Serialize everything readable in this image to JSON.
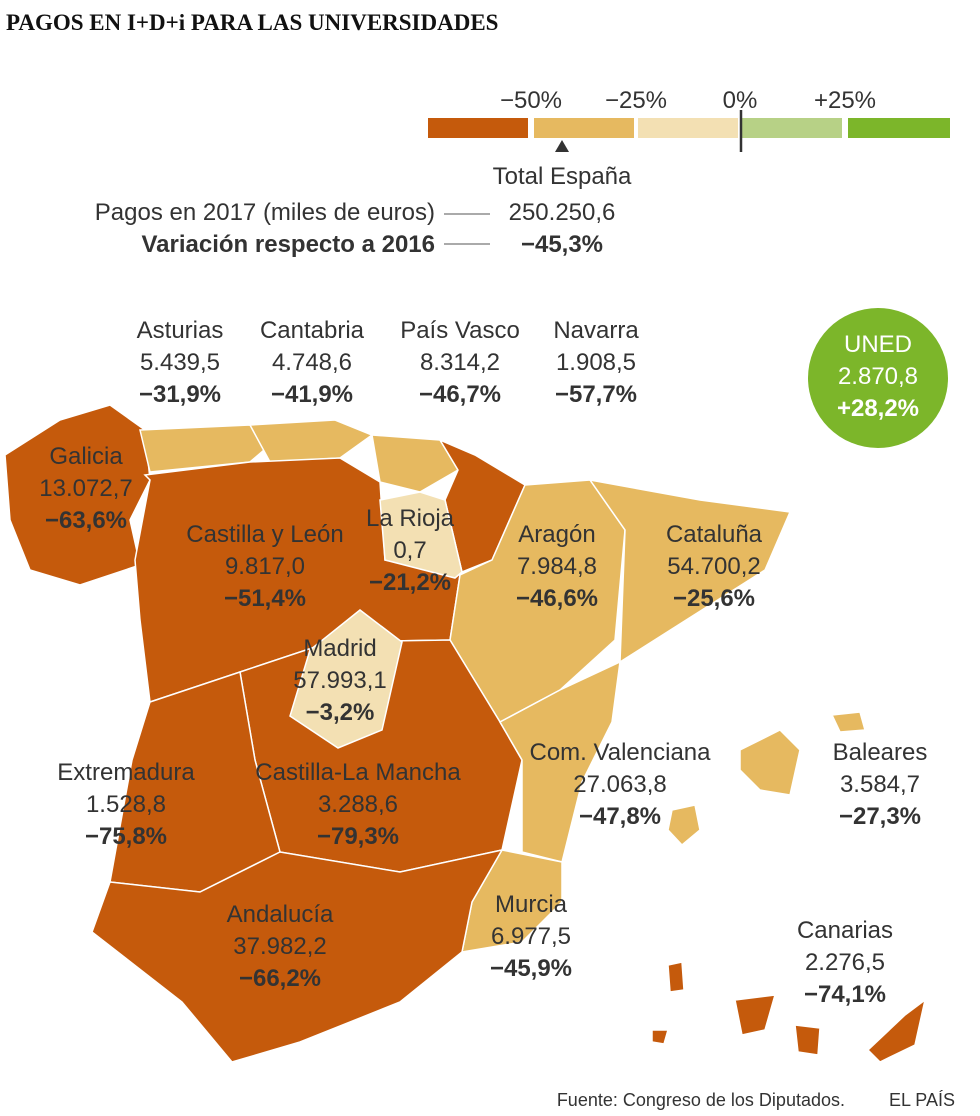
{
  "title": "PAGOS EN I+D+i PARA LAS UNIVERSIDADES",
  "legend": {
    "labels": [
      "−50%",
      "−25%",
      "0%",
      "+25%"
    ],
    "colors": [
      "#c55a0c",
      "#e6b960",
      "#f3e0b3",
      "#b7d186",
      "#7cb62a"
    ]
  },
  "total": {
    "label": "Total España",
    "payments_label": "Pagos en 2017 (miles de euros)",
    "payments": "250.250,6",
    "change_label": "Variación respecto a 2016",
    "change": "−45,3%"
  },
  "regions": [
    {
      "name": "Asturias",
      "value": "5.439,5",
      "change": "−31,9%",
      "color": "#e6b960"
    },
    {
      "name": "Cantabria",
      "value": "4.748,6",
      "change": "−41,9%",
      "color": "#e6b960"
    },
    {
      "name": "País Vasco",
      "value": "8.314,2",
      "change": "−46,7%",
      "color": "#e6b960"
    },
    {
      "name": "Navarra",
      "value": "1.908,5",
      "change": "−57,7%",
      "color": "#c55a0c"
    },
    {
      "name": "Galicia",
      "value": "13.072,7",
      "change": "−63,6%",
      "color": "#c55a0c"
    },
    {
      "name": "Castilla y León",
      "value": "9.817,0",
      "change": "−51,4%",
      "color": "#c55a0c"
    },
    {
      "name": "La Rioja",
      "value": "0,7",
      "change": "−21,2%",
      "color": "#f3e0b3"
    },
    {
      "name": "Aragón",
      "value": "7.984,8",
      "change": "−46,6%",
      "color": "#e6b960"
    },
    {
      "name": "Cataluña",
      "value": "54.700,2",
      "change": "−25,6%",
      "color": "#e6b960"
    },
    {
      "name": "Madrid",
      "value": "57.993,1",
      "change": "−3,2%",
      "color": "#f3e0b3"
    },
    {
      "name": "Extremadura",
      "value": "1.528,8",
      "change": "−75,8%",
      "color": "#c55a0c"
    },
    {
      "name": "Castilla-La Mancha",
      "value": "3.288,6",
      "change": "−79,3%",
      "color": "#c55a0c"
    },
    {
      "name": "Com. Valenciana",
      "value": "27.063,8",
      "change": "−47,8%",
      "color": "#e6b960"
    },
    {
      "name": "Baleares",
      "value": "3.584,7",
      "change": "−27,3%",
      "color": "#e6b960"
    },
    {
      "name": "Andalucía",
      "value": "37.982,2",
      "change": "−66,2%",
      "color": "#c55a0c"
    },
    {
      "name": "Murcia",
      "value": "6.977,5",
      "change": "−45,9%",
      "color": "#e6b960"
    },
    {
      "name": "Canarias",
      "value": "2.276,5",
      "change": "−74,1%",
      "color": "#c55a0c"
    },
    {
      "name": "UNED",
      "value": "2.870,8",
      "change": "+28,2%",
      "color": "#7cb62a"
    }
  ],
  "source": "Fuente: Congreso de los Diputados.",
  "brand": "EL PAÍS"
}
